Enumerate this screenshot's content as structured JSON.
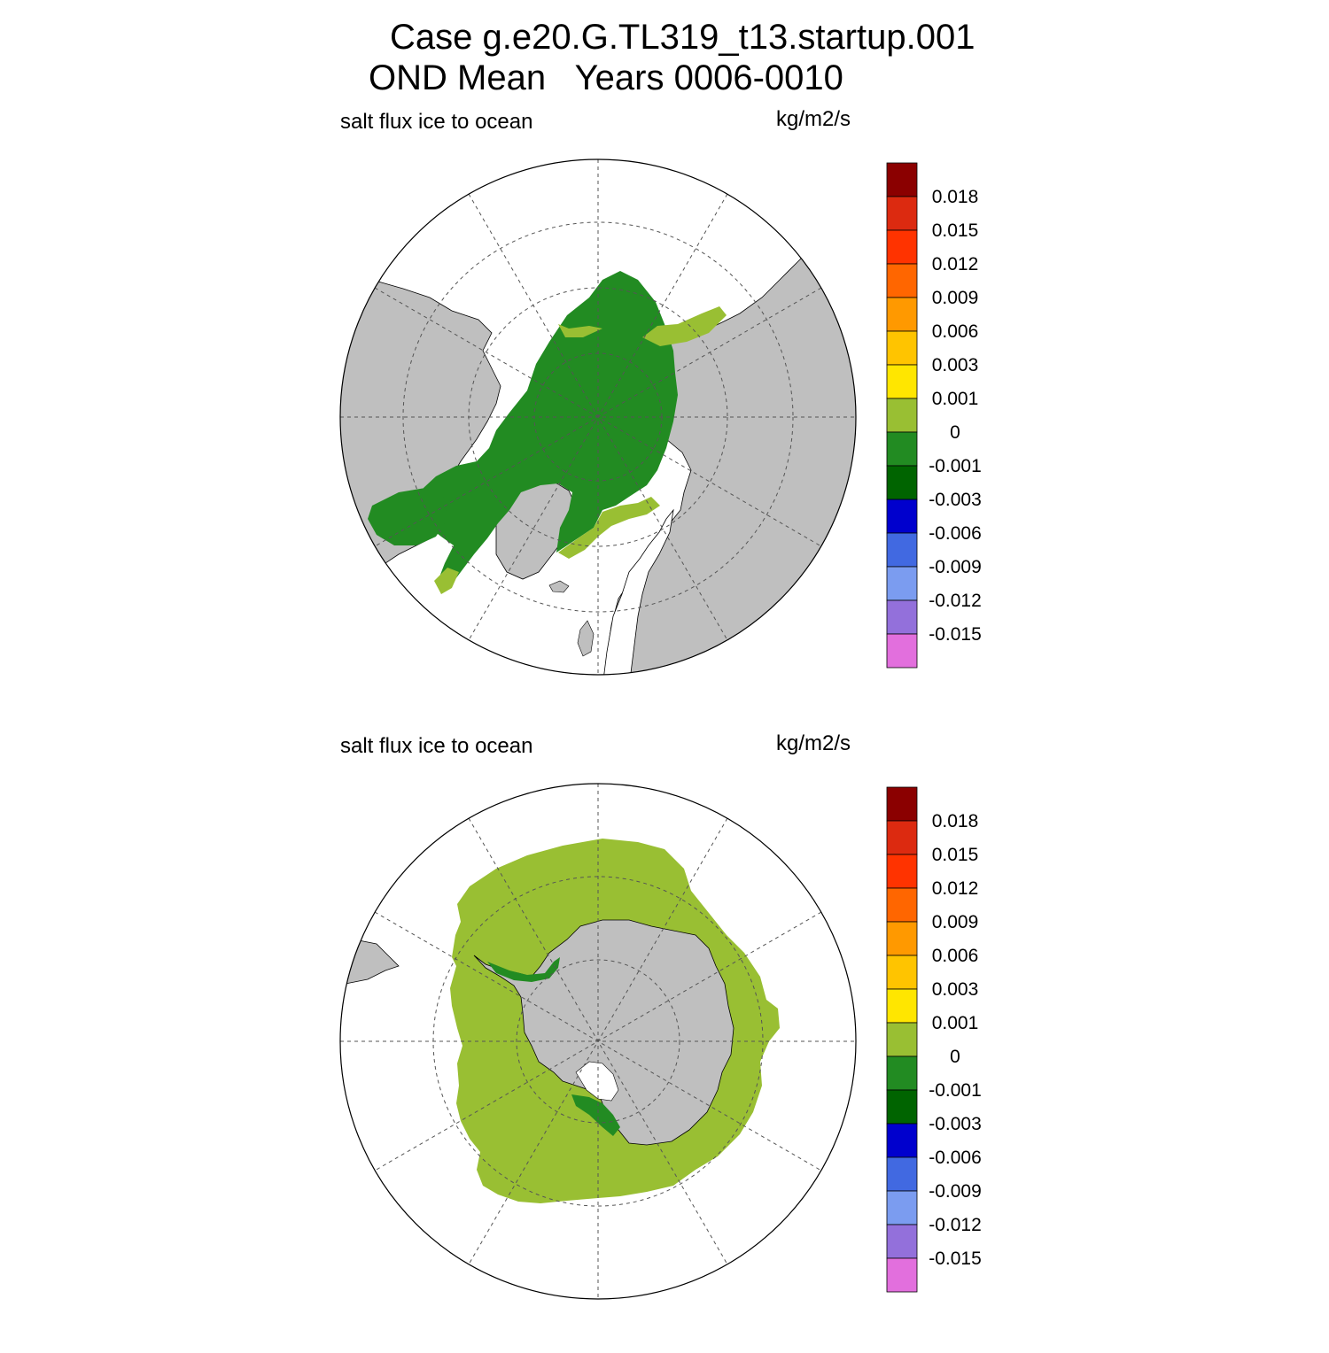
{
  "title": {
    "line1": "Case g.e20.G.TL319_t13.startup.001",
    "line2": "OND Mean   Years 0006-0010"
  },
  "colors": {
    "land": "#bfbfbf",
    "ocean": "#ffffff",
    "grid": "#555555"
  },
  "panels": [
    {
      "id": "north",
      "hemisphere": "Northern Hemisphere",
      "left_label": "salt flux ice to ocean",
      "units": "kg/m2/s"
    },
    {
      "id": "south",
      "hemisphere": "Southern Hemisphere",
      "left_label": "salt flux ice to ocean",
      "units": "kg/m2/s"
    }
  ],
  "colorbar": {
    "labels": [
      "0.018",
      "0.015",
      "0.012",
      "0.009",
      "0.006",
      "0.003",
      "0.001",
      "0",
      "-0.001",
      "-0.003",
      "-0.006",
      "-0.009",
      "-0.012",
      "-0.015"
    ],
    "colors": [
      "#8b0000",
      "#dc2a10",
      "#ff3300",
      "#ff6600",
      "#ff9900",
      "#ffc400",
      "#ffe600",
      "#99bf33",
      "#228b22",
      "#006400",
      "#0000cd",
      "#4169e1",
      "#7b9cf0",
      "#9370db",
      "#e26fdd"
    ]
  }
}
